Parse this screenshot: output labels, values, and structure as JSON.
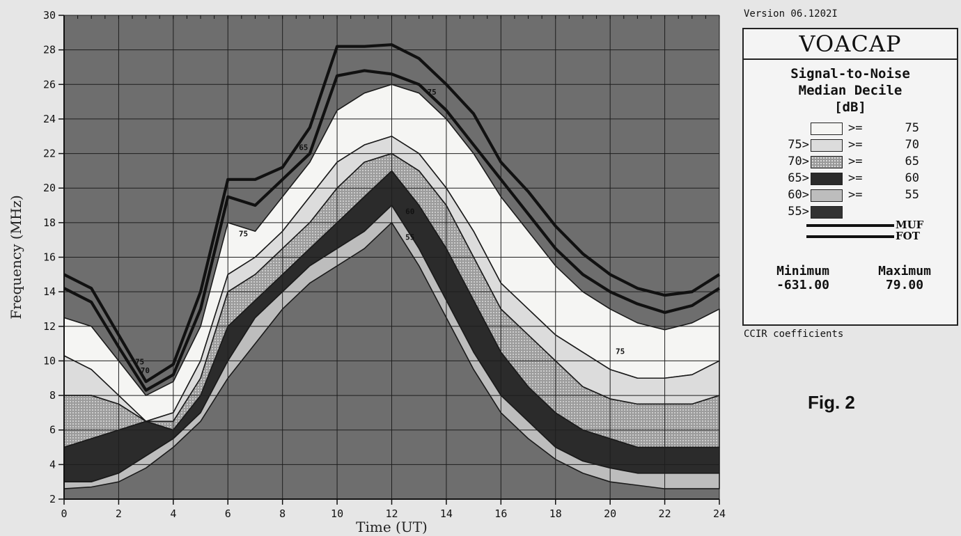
{
  "version": "Version 06.1202I",
  "program": "VOACAP",
  "legend_heading": [
    "Signal-to-Noise",
    "Median Decile",
    "[dB]"
  ],
  "legend_rows": [
    {
      "prefix": "",
      "op": ">=",
      "value": "75",
      "color": "#f5f5f3",
      "texture": ""
    },
    {
      "prefix": "75>",
      "op": ">=",
      "value": "70",
      "color": "#dcdcdc",
      "texture": ""
    },
    {
      "prefix": "70>",
      "op": ">=",
      "value": "65",
      "color": "#a8a8a8",
      "texture": "dotted"
    },
    {
      "prefix": "65>",
      "op": ">=",
      "value": "60",
      "color": "#2b2b2b",
      "texture": ""
    },
    {
      "prefix": "60>",
      "op": ">=",
      "value": "55",
      "color": "#bdbdbd",
      "texture": ""
    },
    {
      "prefix": "55>",
      "op": "",
      "value": "",
      "color": "#333333",
      "texture": ""
    }
  ],
  "line_keys": [
    "MUF",
    "FOT"
  ],
  "minimum_label": "Minimum",
  "minimum_value": "-631.00",
  "maximum_label": "Maximum",
  "maximum_value": "79.00",
  "coefficients": "CCIR coefficients",
  "figure_label": "Fig. 2",
  "colors": {
    "plot_background": "#6e6e6e",
    "contour_line": "#1a1a1a",
    "grid": "#1e1e1e"
  },
  "chart_data": {
    "type": "area",
    "xlabel": "Time  (UT)",
    "ylabel": "Frequency  (MHz)",
    "xlim": [
      0,
      24
    ],
    "ylim": [
      2,
      30
    ],
    "xticks": [
      0,
      2,
      4,
      6,
      8,
      10,
      12,
      14,
      16,
      18,
      20,
      22,
      24
    ],
    "yticks": [
      2,
      4,
      6,
      8,
      10,
      12,
      14,
      16,
      18,
      20,
      22,
      24,
      26,
      28,
      30
    ],
    "grid": true,
    "x": [
      0,
      1,
      2,
      3,
      4,
      5,
      6,
      7,
      8,
      9,
      10,
      11,
      12,
      13,
      14,
      15,
      16,
      17,
      18,
      19,
      20,
      21,
      22,
      23,
      24
    ],
    "series": [
      {
        "name": "MUF",
        "values": [
          15.0,
          14.2,
          11.5,
          8.8,
          9.8,
          14.0,
          20.5,
          20.5,
          21.2,
          23.5,
          28.2,
          28.2,
          28.3,
          27.5,
          26.0,
          24.3,
          21.5,
          19.8,
          17.8,
          16.2,
          15.0,
          14.2,
          13.8,
          14.0,
          15.0
        ]
      },
      {
        "name": "FOT",
        "values": [
          14.2,
          13.4,
          10.8,
          8.3,
          9.2,
          13.0,
          19.5,
          19.0,
          20.5,
          22.0,
          26.5,
          26.8,
          26.6,
          26.0,
          24.5,
          22.5,
          20.5,
          18.5,
          16.5,
          15.0,
          14.0,
          13.3,
          12.8,
          13.2,
          14.2
        ]
      }
    ],
    "bands": [
      {
        "label": ">= 75",
        "level": 75,
        "lower": [
          10.3,
          9.5,
          8.0,
          6.5,
          7.0,
          10.0,
          15.0,
          16.0,
          17.5,
          19.5,
          21.5,
          22.5,
          23.0,
          22.0,
          20.0,
          17.5,
          14.5,
          13.0,
          11.5,
          10.5,
          9.5,
          9.0,
          9.0,
          9.2,
          10.0
        ],
        "upper": [
          12.5,
          12.0,
          10.0,
          8.0,
          8.8,
          12.0,
          18.0,
          17.5,
          19.5,
          21.5,
          24.5,
          25.5,
          26.0,
          25.5,
          24.0,
          22.0,
          19.5,
          17.5,
          15.5,
          14.0,
          13.0,
          12.2,
          11.8,
          12.2,
          13.0
        ],
        "annotations": [
          {
            "x": 2.6,
            "y": 9.8
          },
          {
            "x": 6.4,
            "y": 17.2
          },
          {
            "x": 13.3,
            "y": 25.4
          },
          {
            "x": 20.2,
            "y": 10.4
          }
        ]
      },
      {
        "label": "75> >= 70",
        "level": 70,
        "lower": [
          8.0,
          8.0,
          7.5,
          6.5,
          6.5,
          9.0,
          14.0,
          15.0,
          16.5,
          18.0,
          20.0,
          21.5,
          22.0,
          21.0,
          19.0,
          16.0,
          13.0,
          11.5,
          10.0,
          8.5,
          7.8,
          7.5,
          7.5,
          7.5,
          8.0
        ],
        "upper": [
          10.3,
          9.5,
          8.0,
          6.5,
          7.0,
          10.0,
          15.0,
          16.0,
          17.5,
          19.5,
          21.5,
          22.5,
          23.0,
          22.0,
          20.0,
          17.5,
          14.5,
          13.0,
          11.5,
          10.5,
          9.5,
          9.0,
          9.0,
          9.2,
          10.0
        ],
        "annotations": [
          {
            "x": 2.8,
            "y": 9.3
          }
        ]
      },
      {
        "label": "70> >= 65",
        "level": 65,
        "lower": [
          5.0,
          5.5,
          6.0,
          6.5,
          6.0,
          8.0,
          12.0,
          13.5,
          15.0,
          16.5,
          18.0,
          19.5,
          21.0,
          19.0,
          16.5,
          13.5,
          10.5,
          8.5,
          7.0,
          6.0,
          5.5,
          5.0,
          5.0,
          5.0,
          5.0
        ],
        "upper": [
          8.0,
          8.0,
          7.5,
          6.5,
          6.5,
          9.0,
          14.0,
          15.0,
          16.5,
          18.0,
          20.0,
          21.5,
          22.0,
          21.0,
          19.0,
          16.0,
          13.0,
          11.5,
          10.0,
          8.5,
          7.8,
          7.5,
          7.5,
          7.5,
          8.0
        ],
        "annotations": [
          {
            "x": 8.6,
            "y": 22.2
          }
        ]
      },
      {
        "label": "65> >= 60",
        "level": 60,
        "lower": [
          3.0,
          3.0,
          3.5,
          4.5,
          5.5,
          7.0,
          10.0,
          12.5,
          14.0,
          15.5,
          16.5,
          17.5,
          19.0,
          16.5,
          13.5,
          10.5,
          8.0,
          6.5,
          5.0,
          4.2,
          3.8,
          3.5,
          3.5,
          3.5,
          3.5
        ],
        "upper": [
          5.0,
          5.5,
          6.0,
          6.5,
          6.0,
          8.0,
          12.0,
          13.5,
          15.0,
          16.5,
          18.0,
          19.5,
          21.0,
          19.0,
          16.5,
          13.5,
          10.5,
          8.5,
          7.0,
          6.0,
          5.5,
          5.0,
          5.0,
          5.0,
          5.0
        ],
        "annotations": [
          {
            "x": 12.5,
            "y": 18.5
          }
        ]
      },
      {
        "label": "60> >= 55",
        "level": 55,
        "lower": [
          2.6,
          2.7,
          3.0,
          3.8,
          5.0,
          6.5,
          9.0,
          11.0,
          13.0,
          14.5,
          15.5,
          16.5,
          18.0,
          15.5,
          12.5,
          9.5,
          7.0,
          5.5,
          4.3,
          3.5,
          3.0,
          2.8,
          2.6,
          2.6,
          2.6
        ],
        "upper": [
          3.0,
          3.0,
          3.5,
          4.5,
          5.5,
          7.0,
          10.0,
          12.5,
          14.0,
          15.5,
          16.5,
          17.5,
          19.0,
          16.5,
          13.5,
          10.5,
          8.0,
          6.5,
          5.0,
          4.2,
          3.8,
          3.5,
          3.5,
          3.5,
          3.5
        ],
        "annotations": [
          {
            "x": 12.5,
            "y": 17.0
          }
        ]
      }
    ]
  }
}
